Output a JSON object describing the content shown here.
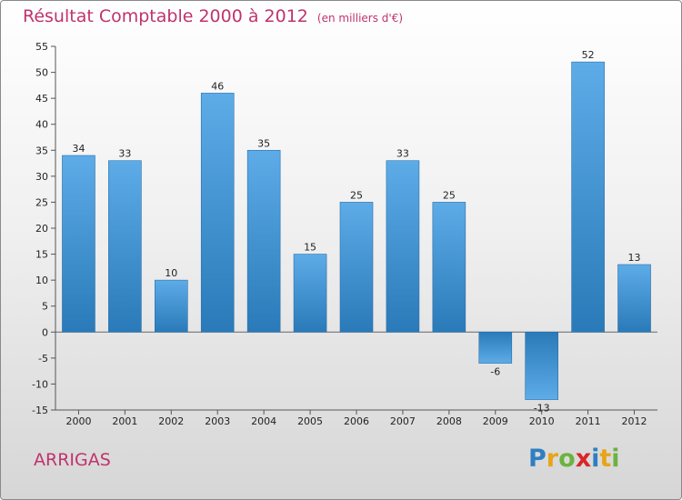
{
  "header": {
    "title": "Résultat Comptable 2000 à 2012",
    "subtitle": "(en milliers d'€)"
  },
  "commune": "ARRIGAS",
  "logo": {
    "letters": [
      {
        "char": "P",
        "color": "#2e7fc2"
      },
      {
        "char": "r",
        "color": "#e8a419"
      },
      {
        "char": "o",
        "color": "#6cb33f"
      },
      {
        "char": "x",
        "color": "#d9262a"
      },
      {
        "char": "i",
        "color": "#2e7fc2"
      },
      {
        "char": "t",
        "color": "#e8a419"
      },
      {
        "char": "i",
        "color": "#6cb33f"
      }
    ]
  },
  "colors": {
    "bar_top": "#5dace8",
    "bar_bottom": "#2a7ab9",
    "accent": "#c0336d"
  },
  "chart_data": {
    "type": "bar",
    "title": "Résultat Comptable 2000 à 2012",
    "subtitle": "(en milliers d'€)",
    "categories": [
      "2000",
      "2001",
      "2002",
      "2003",
      "2004",
      "2005",
      "2006",
      "2007",
      "2008",
      "2009",
      "2010",
      "2011",
      "2012"
    ],
    "values": [
      34,
      33,
      10,
      46,
      35,
      15,
      25,
      33,
      25,
      -6,
      -13,
      52,
      13
    ],
    "ylim": [
      -15,
      55
    ],
    "yticks": [
      -15,
      -10,
      -5,
      0,
      5,
      10,
      15,
      20,
      25,
      30,
      35,
      40,
      45,
      50,
      55
    ],
    "xlabel": "",
    "ylabel": "",
    "grid": false,
    "legend": "none"
  }
}
